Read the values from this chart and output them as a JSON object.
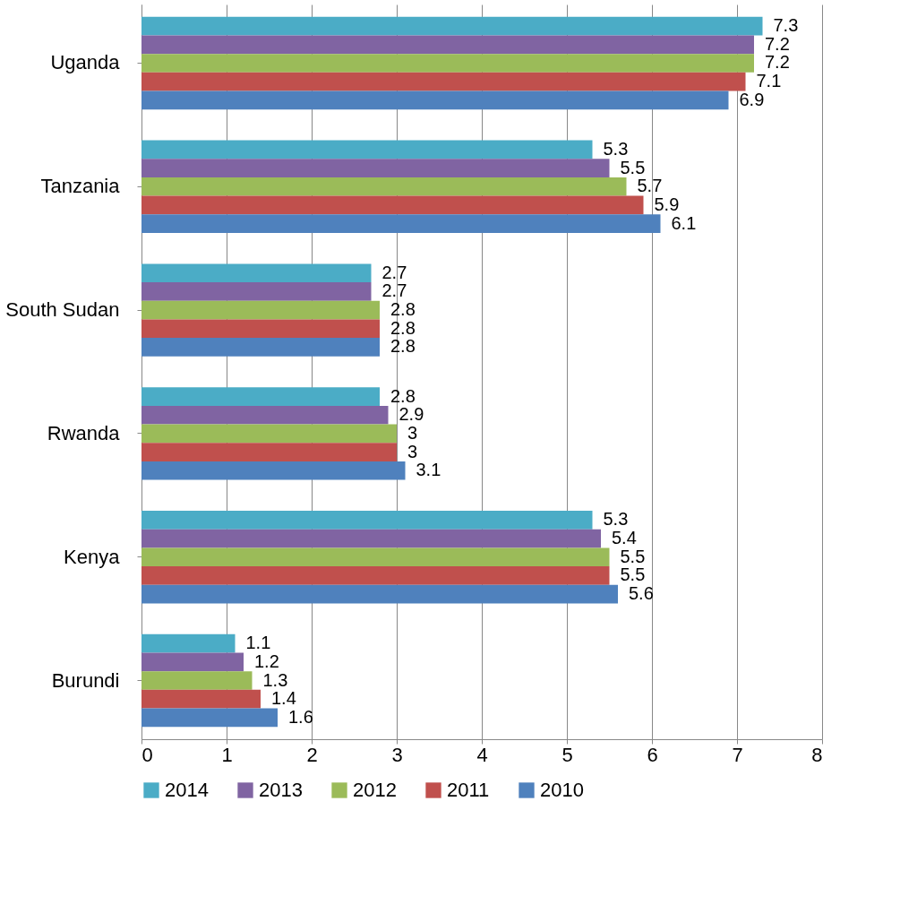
{
  "chart_data": {
    "type": "bar",
    "orientation": "horizontal",
    "categories": [
      "Uganda",
      "Tanzania",
      "South Sudan",
      "Rwanda",
      "Kenya",
      "Burundi"
    ],
    "series": [
      {
        "name": "2014",
        "color": "#4bacc6",
        "values": [
          7.3,
          5.3,
          2.7,
          2.8,
          5.3,
          1.1
        ]
      },
      {
        "name": "2013",
        "color": "#8064a2",
        "values": [
          7.2,
          5.5,
          2.7,
          2.9,
          5.4,
          1.2
        ]
      },
      {
        "name": "2012",
        "color": "#9bbb59",
        "values": [
          7.2,
          5.7,
          2.8,
          3,
          5.5,
          1.3
        ]
      },
      {
        "name": "2011",
        "color": "#c0504d",
        "values": [
          7.1,
          5.9,
          2.8,
          3,
          5.5,
          1.4
        ]
      },
      {
        "name": "2010",
        "color": "#4f81bd",
        "values": [
          6.9,
          6.1,
          2.8,
          3.1,
          5.6,
          1.6
        ]
      }
    ],
    "xlim": [
      0,
      8
    ],
    "xticks": [
      0,
      1,
      2,
      3,
      4,
      5,
      6,
      7,
      8
    ],
    "grid": "x",
    "legend": "bottom",
    "data_labels": true
  }
}
